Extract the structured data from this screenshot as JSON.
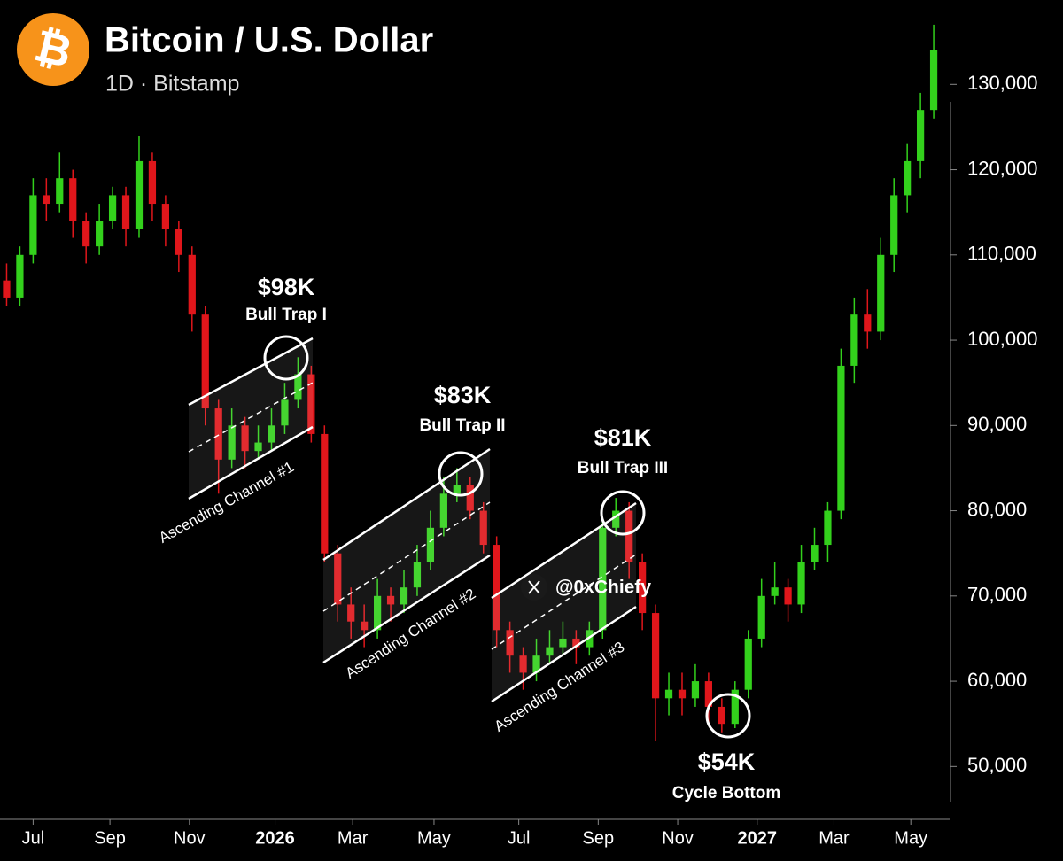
{
  "chart_data": {
    "type": "candlestick",
    "icon": "₿",
    "title": "Bitcoin / U.S. Dollar",
    "subtitle": "1D · Bitstamp",
    "open": [
      107000,
      105000,
      110000,
      117000,
      116000,
      119000,
      114000,
      111000,
      114000,
      117000,
      113000,
      121000,
      116000,
      113000,
      110000,
      103000,
      92000,
      86000,
      90000,
      87000,
      88000,
      90000,
      93000,
      96000,
      89000,
      75000,
      69000,
      67000,
      66000,
      70000,
      69000,
      71000,
      74000,
      78000,
      82000,
      83000,
      80000,
      76000,
      66000,
      63000,
      61000,
      63000,
      64000,
      65000,
      64000,
      66000,
      78000,
      80000,
      74000,
      68000,
      58000,
      59000,
      58000,
      60000,
      57000,
      55000,
      59000,
      65000,
      70000,
      71000,
      69000,
      74000,
      76000,
      80000,
      97000,
      103000,
      101000,
      110000,
      117000,
      121000,
      127000
    ],
    "high": [
      109000,
      111000,
      119000,
      119000,
      122000,
      120000,
      115000,
      116000,
      118000,
      118000,
      124000,
      122000,
      117000,
      114000,
      111000,
      104000,
      93000,
      92000,
      91000,
      90000,
      92000,
      95000,
      98000,
      97000,
      90000,
      76000,
      71000,
      69000,
      72000,
      71000,
      73000,
      76000,
      80000,
      84000,
      85000,
      84000,
      81000,
      77000,
      67000,
      64000,
      65000,
      66000,
      67000,
      66000,
      67000,
      79000,
      81500,
      81000,
      75000,
      69000,
      61000,
      61000,
      62000,
      61000,
      58000,
      60000,
      66000,
      72000,
      74000,
      72000,
      76000,
      78000,
      81000,
      99000,
      105000,
      106000,
      112000,
      119000,
      123000,
      129000,
      137000
    ],
    "low": [
      104000,
      104000,
      109000,
      114000,
      115000,
      112000,
      109000,
      110000,
      113000,
      111000,
      112000,
      114000,
      111000,
      108000,
      101000,
      90000,
      82000,
      85000,
      85000,
      86000,
      87000,
      89000,
      92000,
      88000,
      74000,
      67000,
      65000,
      64000,
      65000,
      67000,
      68000,
      70000,
      73000,
      77000,
      81000,
      79000,
      75000,
      64000,
      61000,
      59000,
      60000,
      62000,
      63000,
      62000,
      63000,
      65000,
      77000,
      72000,
      66000,
      53000,
      56000,
      56000,
      57000,
      55000,
      54000,
      54500,
      58000,
      64000,
      69000,
      67000,
      68000,
      73000,
      74000,
      79000,
      95000,
      99000,
      100000,
      108000,
      115000,
      119000,
      126000
    ],
    "close": [
      105000,
      110000,
      117000,
      116000,
      119000,
      114000,
      111000,
      114000,
      117000,
      113000,
      121000,
      116000,
      113000,
      110000,
      103000,
      92000,
      86000,
      90000,
      87000,
      88000,
      90000,
      93000,
      96000,
      89000,
      75000,
      69000,
      67000,
      66000,
      70000,
      69000,
      71000,
      74000,
      78000,
      82000,
      83000,
      80000,
      76000,
      66000,
      63000,
      61000,
      63000,
      64000,
      65000,
      64000,
      66000,
      78000,
      80000,
      74000,
      68000,
      58000,
      59000,
      58000,
      60000,
      57000,
      55000,
      59000,
      65000,
      70000,
      71000,
      69000,
      74000,
      76000,
      80000,
      97000,
      103000,
      101000,
      110000,
      117000,
      121000,
      127000,
      134000
    ],
    "up_color": "#33d11c",
    "down_color": "#e0161b",
    "xlim": [
      -0.5,
      71.2
    ],
    "xticks": [
      {
        "value": 2,
        "label": "Jul"
      },
      {
        "value": 7.8,
        "label": "Sep"
      },
      {
        "value": 13.8,
        "label": "Nov"
      },
      {
        "value": 20.27,
        "label": "2026"
      },
      {
        "value": 26.13,
        "label": "Mar"
      },
      {
        "value": 32.27,
        "label": "May"
      },
      {
        "value": 38.67,
        "label": "Jul"
      },
      {
        "value": 44.67,
        "label": "Sep"
      },
      {
        "value": 50.67,
        "label": "Nov"
      },
      {
        "value": 56.67,
        "label": "2027"
      },
      {
        "value": 62.47,
        "label": "Mar"
      },
      {
        "value": 68.27,
        "label": "May"
      }
    ],
    "ylim": [
      43800,
      139900
    ],
    "yticks": [
      {
        "value": 50000,
        "label": "50,000"
      },
      {
        "value": 60000,
        "label": "60,000"
      },
      {
        "value": 70000,
        "label": "70,000"
      },
      {
        "value": 80000,
        "label": "80,000"
      },
      {
        "value": 90000,
        "label": "90,000"
      },
      {
        "value": 100000,
        "label": "100,000"
      },
      {
        "value": 110000,
        "label": "110,000"
      },
      {
        "value": 120000,
        "label": "120,000"
      },
      {
        "value": 130000,
        "label": "130,000"
      }
    ],
    "annotations": [
      {
        "price": "$98K",
        "label": "Bull Trap I"
      },
      {
        "price": "$83K",
        "label": "Bull Trap II"
      },
      {
        "price": "$81K",
        "label": "Bull Trap III"
      },
      {
        "price": "$54K",
        "label": "Cycle Bottom"
      }
    ],
    "channels": [
      "Ascending Channel #1",
      "Ascending Channel #2",
      "Ascending Channel #3"
    ],
    "watermark": "@0xChiefy"
  }
}
